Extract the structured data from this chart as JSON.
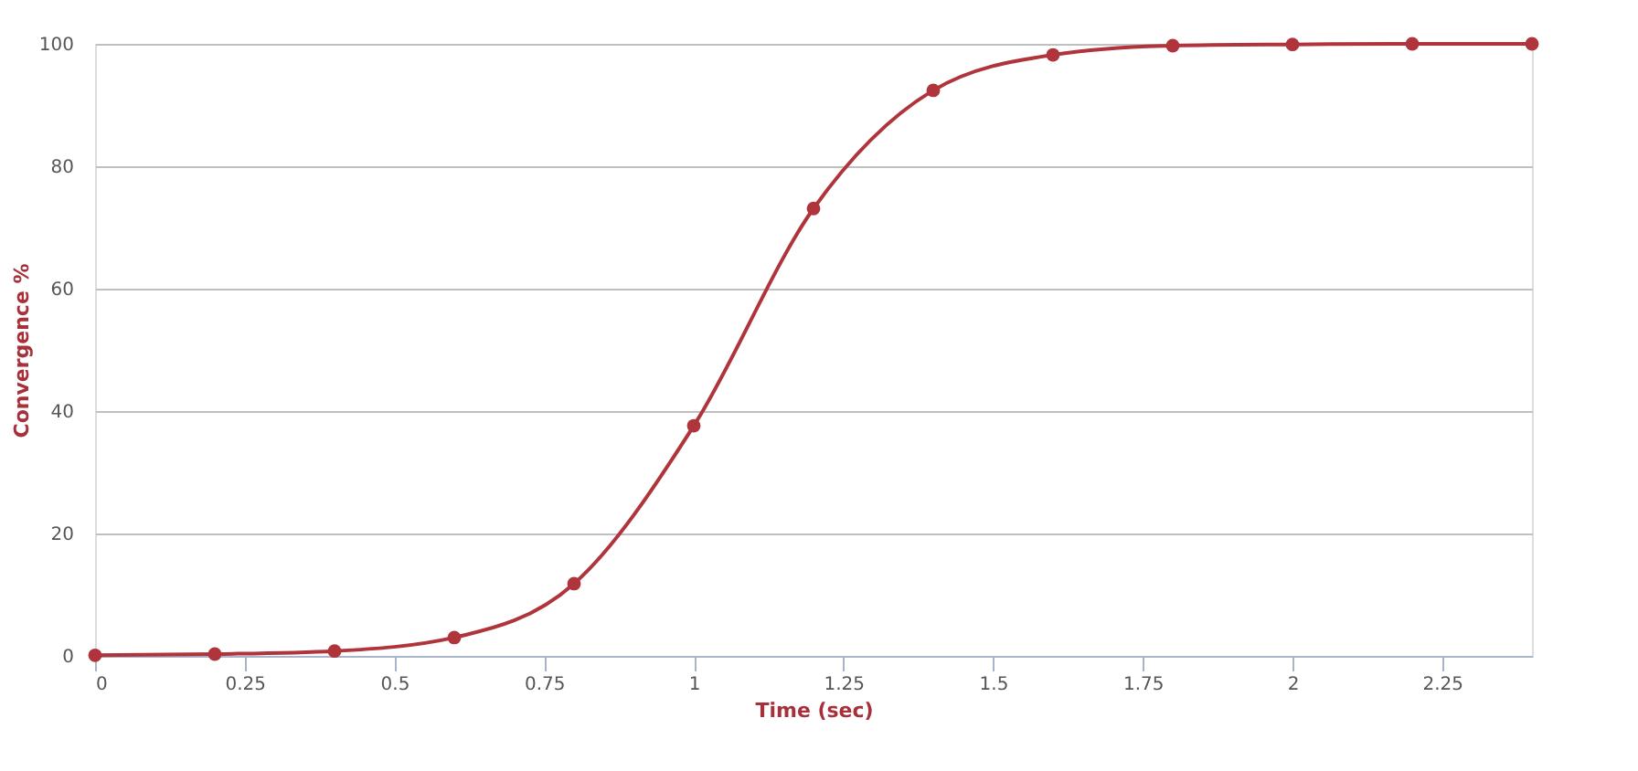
{
  "chart_data": {
    "type": "line",
    "xlabel": "Time (sec)",
    "ylabel": "Convergence %",
    "x": [
      0,
      0.2,
      0.4,
      0.6,
      0.8,
      1.0,
      1.2,
      1.4,
      1.6,
      1.8,
      2.0,
      2.2,
      2.4
    ],
    "series": [
      {
        "color": "#b0343c",
        "values": [
          0.1,
          0.3,
          0.8,
          3.0,
          11.8,
          37.6,
          73.1,
          92.4,
          98.2,
          99.7,
          99.9,
          100,
          100
        ]
      }
    ],
    "xlim": [
      0,
      2.4
    ],
    "xticks": [
      0,
      0.25,
      0.5,
      0.75,
      1,
      1.25,
      1.5,
      1.75,
      2,
      2.25
    ],
    "ylim": [
      0,
      100
    ],
    "yticks": [
      0,
      20,
      40,
      60,
      80,
      100
    ],
    "grid": "y",
    "marker": "circle",
    "line_style": "solid"
  }
}
